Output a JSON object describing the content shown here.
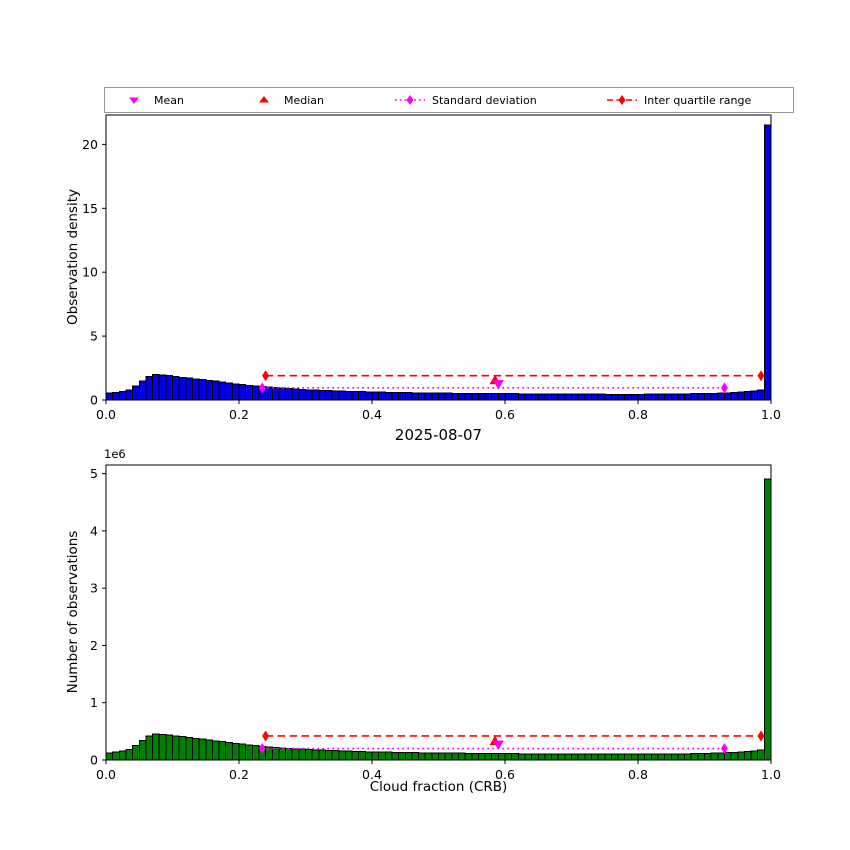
{
  "figure": {
    "background": "#ffffff",
    "title": "2025-08-07"
  },
  "style": {
    "mean_color": "#ff00ff",
    "median_color": "#ff0000",
    "std_color": "#ff00ff",
    "iqr_color": "#ff0000",
    "axis_color": "#000000",
    "bar_edge_color": "#000000"
  },
  "legend": {
    "items": [
      {
        "label": "Mean",
        "marker": "triangle-down-magenta"
      },
      {
        "label": "Median",
        "marker": "triangle-up-red"
      },
      {
        "label": "Standard deviation",
        "marker": "diamond-magenta-dotted-line"
      },
      {
        "label": "Inter quartile range",
        "marker": "diamond-red-dashed-line"
      }
    ]
  },
  "chart_data": [
    {
      "name": "observation-density-histogram",
      "type": "bar",
      "ylabel": "Observation density",
      "xlabel": "",
      "bar_color": "#0000e0",
      "bin_start": 0,
      "bin_width": 0.01,
      "xlim": [
        0,
        1
      ],
      "ylim": [
        0,
        22.3
      ],
      "xtick_values": [
        0,
        0.2,
        0.4,
        0.6,
        0.8,
        1.0
      ],
      "xtick_labels": [
        "0.0",
        "0.2",
        "0.4",
        "0.6",
        "0.8",
        "1.0"
      ],
      "ytick_values": [
        0,
        5,
        10,
        15,
        20
      ],
      "ytick_labels": [
        "0",
        "5",
        "10",
        "15",
        "20"
      ],
      "values": [
        0.55,
        0.6,
        0.68,
        0.8,
        1.1,
        1.5,
        1.85,
        2.0,
        1.97,
        1.9,
        1.84,
        1.78,
        1.72,
        1.66,
        1.6,
        1.53,
        1.47,
        1.4,
        1.33,
        1.27,
        1.21,
        1.15,
        1.1,
        1.05,
        1.0,
        0.96,
        0.92,
        0.89,
        0.86,
        0.83,
        0.8,
        0.78,
        0.76,
        0.74,
        0.72,
        0.7,
        0.68,
        0.66,
        0.65,
        0.63,
        0.62,
        0.61,
        0.6,
        0.59,
        0.58,
        0.57,
        0.56,
        0.55,
        0.55,
        0.54,
        0.53,
        0.53,
        0.52,
        0.52,
        0.51,
        0.51,
        0.5,
        0.5,
        0.5,
        0.49,
        0.49,
        0.49,
        0.48,
        0.48,
        0.48,
        0.47,
        0.47,
        0.47,
        0.47,
        0.46,
        0.46,
        0.46,
        0.46,
        0.46,
        0.46,
        0.45,
        0.45,
        0.45,
        0.45,
        0.45,
        0.45,
        0.46,
        0.46,
        0.46,
        0.47,
        0.47,
        0.48,
        0.48,
        0.49,
        0.5,
        0.51,
        0.52,
        0.54,
        0.56,
        0.58,
        0.61,
        0.65,
        0.7,
        0.78,
        21.5
      ],
      "stats": {
        "mean_x": 0.59,
        "mean_marker_y": 1.25,
        "median_x": 0.585,
        "median_marker_y": 1.55,
        "std_range": [
          0.235,
          0.93
        ],
        "std_y": 0.95,
        "iqr_range": [
          0.24,
          0.985
        ],
        "iqr_y": 1.9
      }
    },
    {
      "name": "number-of-observations-histogram",
      "type": "bar",
      "ylabel": "Number of observations",
      "xlabel": "Cloud fraction (CRB)",
      "offset_text": "1e6",
      "bar_color": "#008000",
      "bin_start": 0,
      "bin_width": 0.01,
      "xlim": [
        0,
        1
      ],
      "ylim": [
        0,
        5.15
      ],
      "xtick_values": [
        0,
        0.2,
        0.4,
        0.6,
        0.8,
        1.0
      ],
      "xtick_labels": [
        "0.0",
        "0.2",
        "0.4",
        "0.6",
        "0.8",
        "1.0"
      ],
      "ytick_values": [
        0,
        1,
        2,
        3,
        4,
        5
      ],
      "ytick_labels": [
        "0",
        "1",
        "2",
        "3",
        "4",
        "5"
      ],
      "values": [
        0.125,
        0.137,
        0.155,
        0.182,
        0.251,
        0.342,
        0.422,
        0.456,
        0.449,
        0.433,
        0.42,
        0.406,
        0.392,
        0.378,
        0.365,
        0.349,
        0.335,
        0.319,
        0.303,
        0.29,
        0.276,
        0.262,
        0.251,
        0.239,
        0.228,
        0.219,
        0.21,
        0.203,
        0.196,
        0.189,
        0.182,
        0.178,
        0.173,
        0.169,
        0.164,
        0.16,
        0.155,
        0.15,
        0.148,
        0.144,
        0.141,
        0.139,
        0.137,
        0.135,
        0.132,
        0.13,
        0.128,
        0.125,
        0.125,
        0.123,
        0.121,
        0.121,
        0.119,
        0.119,
        0.116,
        0.116,
        0.114,
        0.114,
        0.114,
        0.112,
        0.112,
        0.112,
        0.109,
        0.109,
        0.109,
        0.107,
        0.107,
        0.107,
        0.107,
        0.105,
        0.105,
        0.105,
        0.105,
        0.105,
        0.105,
        0.103,
        0.103,
        0.103,
        0.103,
        0.103,
        0.103,
        0.105,
        0.105,
        0.105,
        0.107,
        0.107,
        0.109,
        0.109,
        0.112,
        0.114,
        0.116,
        0.119,
        0.123,
        0.128,
        0.132,
        0.139,
        0.148,
        0.16,
        0.178,
        4.902
      ],
      "stats": {
        "mean_x": 0.59,
        "mean_marker_y": 0.27,
        "median_x": 0.585,
        "median_marker_y": 0.33,
        "std_range": [
          0.235,
          0.93
        ],
        "std_y": 0.2,
        "iqr_range": [
          0.24,
          0.985
        ],
        "iqr_y": 0.42
      }
    }
  ]
}
